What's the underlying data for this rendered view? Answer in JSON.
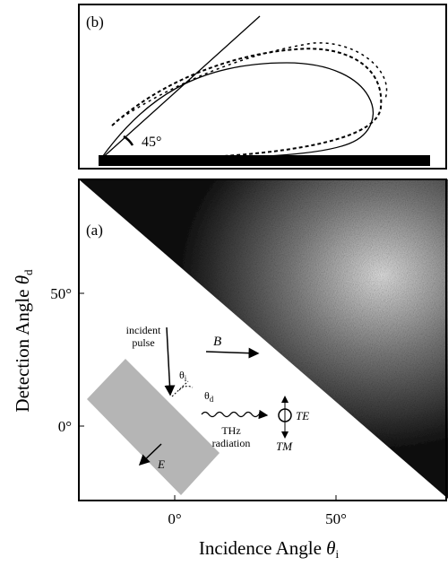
{
  "panel_b": {
    "label": "(b)",
    "angle_label": "45°"
  },
  "panel_a": {
    "label": "(a)",
    "y_axis_label": {
      "text": "Detection Angle",
      "symbol": "θ",
      "subscript": "d"
    },
    "x_axis_label": {
      "text": "Incidence Angle",
      "symbol": "θ",
      "subscript": "i"
    },
    "y_ticks": [
      "50°",
      "0°"
    ],
    "x_ticks": [
      "0°",
      "50°"
    ],
    "annotations": {
      "incident": [
        "incident",
        "pulse"
      ],
      "field_b": "B",
      "theta": "θ",
      "theta_i_sub": "i",
      "theta_d_sub": "d",
      "te": "TE",
      "tm": "TM",
      "field_e": "E",
      "thz": [
        "THz",
        "radiation"
      ]
    }
  }
}
